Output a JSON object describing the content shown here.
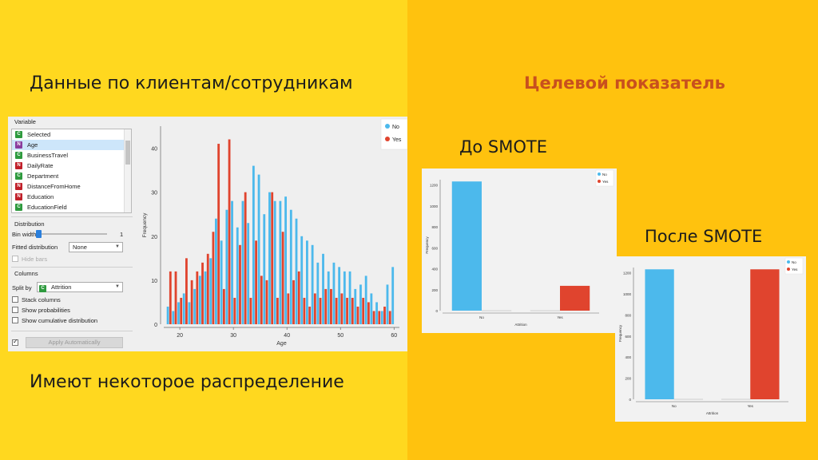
{
  "slide": {
    "left_heading": "Данные по клиентам/сотрудникам",
    "left_caption": "Имеют некоторое распределение",
    "right_heading": "Целевой показатель",
    "before_label": "До SMOTE",
    "after_label": "После SMOTE",
    "colors": {
      "left_bg": "#ffd81f",
      "right_bg": "#ffc20e",
      "accent": "#c8501e"
    }
  },
  "widget": {
    "variable_group": "Variable",
    "variables": [
      {
        "badge": "C",
        "type": "c",
        "label": "Selected"
      },
      {
        "badge": "N",
        "type": "p",
        "label": "Age",
        "selected": true
      },
      {
        "badge": "C",
        "type": "c",
        "label": "BusinessTravel"
      },
      {
        "badge": "N",
        "type": "n",
        "label": "DailyRate"
      },
      {
        "badge": "C",
        "type": "c",
        "label": "Department"
      },
      {
        "badge": "N",
        "type": "n",
        "label": "DistanceFromHome"
      },
      {
        "badge": "N",
        "type": "n",
        "label": "Education"
      },
      {
        "badge": "C",
        "type": "c",
        "label": "EducationField"
      }
    ],
    "distribution_group": "Distribution",
    "bin_width_label": "Bin width",
    "bin_width_value": "1",
    "fitted_label": "Fitted distribution",
    "fitted_value": "None",
    "hide_bars_label": "Hide bars",
    "columns_group": "Columns",
    "split_by_label": "Split by",
    "split_by_value": "Attrition",
    "split_by_badge": "C",
    "stack_columns_label": "Stack columns",
    "show_probabilities_label": "Show probabilities",
    "show_cumulative_label": "Show cumulative distribution",
    "apply_label": "Apply Automatically",
    "auto_apply_checked": true
  },
  "chart_data": [
    {
      "type": "bar",
      "xlabel": "Age",
      "ylabel": "Frequency",
      "ylim": [
        0,
        45
      ],
      "x_ticks": [
        20,
        30,
        40,
        50,
        60
      ],
      "y_ticks": [
        0,
        10,
        20,
        30,
        40
      ],
      "legend_position": "top-right",
      "x": [
        18,
        19,
        20,
        21,
        22,
        23,
        24,
        25,
        26,
        27,
        28,
        29,
        30,
        31,
        32,
        33,
        34,
        35,
        36,
        37,
        38,
        39,
        40,
        41,
        42,
        43,
        44,
        45,
        46,
        47,
        48,
        49,
        50,
        51,
        52,
        53,
        54,
        55,
        56,
        57,
        58,
        59,
        60
      ],
      "series": [
        {
          "name": "No",
          "color": "#4cb9ec",
          "values": [
            4,
            3,
            5,
            7,
            5,
            8,
            11,
            12,
            15,
            24,
            19,
            26,
            28,
            22,
            28,
            23,
            36,
            34,
            25,
            30,
            28,
            28,
            29,
            26,
            24,
            20,
            19,
            18,
            14,
            16,
            12,
            14,
            13,
            12,
            12,
            8,
            9,
            11,
            7,
            5,
            3,
            9,
            13
          ]
        },
        {
          "name": "Yes",
          "color": "#e0442e",
          "values": [
            12,
            12,
            6,
            15,
            10,
            12,
            14,
            16,
            21,
            41,
            8,
            42,
            6,
            18,
            30,
            6,
            19,
            11,
            10,
            30,
            6,
            21,
            7,
            10,
            12,
            6,
            4,
            7,
            6,
            8,
            8,
            6,
            7,
            6,
            6,
            4,
            6,
            5,
            3,
            3,
            4,
            3,
            0
          ]
        }
      ]
    },
    {
      "type": "bar",
      "xlabel": "Attrition",
      "ylabel": "Frequency",
      "ylim": [
        0,
        1250
      ],
      "y_ticks": [
        0,
        200,
        400,
        600,
        800,
        1000,
        1200
      ],
      "categories": [
        "No",
        "Yes"
      ],
      "series": [
        {
          "name": "No",
          "color": "#4cb9ec",
          "values": [
            1233,
            0
          ]
        },
        {
          "name": "Yes",
          "color": "#e0442e",
          "values": [
            0,
            237
          ]
        }
      ]
    },
    {
      "type": "bar",
      "xlabel": "Attrition",
      "ylabel": "Frequency",
      "ylim": [
        0,
        1250
      ],
      "y_ticks": [
        0,
        200,
        400,
        600,
        800,
        1000,
        1200
      ],
      "categories": [
        "No",
        "Yes"
      ],
      "series": [
        {
          "name": "No",
          "color": "#4cb9ec",
          "values": [
            1233,
            0
          ]
        },
        {
          "name": "Yes",
          "color": "#e0442e",
          "values": [
            0,
            1233
          ]
        }
      ]
    }
  ]
}
